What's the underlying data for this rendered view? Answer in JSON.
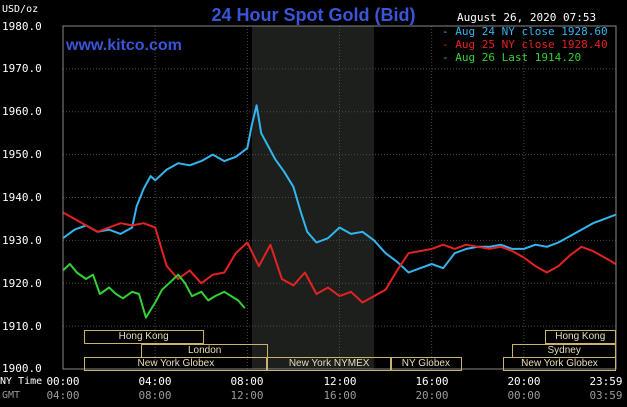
{
  "chart_data": {
    "type": "line",
    "title": "24 Hour Spot Gold (Bid)",
    "watermark": "www.kitco.com",
    "unit_label": "USD/oz",
    "datestamp": "August 26, 2020 07:53",
    "ylim": [
      1900,
      1980
    ],
    "y_ticks": [
      "1980.0",
      "1970.0",
      "1960.0",
      "1950.0",
      "1940.0",
      "1930.0",
      "1920.0",
      "1910.0",
      "1900.0"
    ],
    "xlim": [
      0,
      24
    ],
    "x_ticks_ny": [
      "00:00",
      "04:00",
      "08:00",
      "12:00",
      "16:00",
      "20:00",
      "23:59"
    ],
    "x_ticks_gmt": [
      "04:00",
      "08:00",
      "12:00",
      "16:00",
      "20:00",
      "00:00",
      "03:59"
    ],
    "x_row_label_ny": "NY Time",
    "x_row_label_gmt": "GMT",
    "grid": true,
    "legend_position": "top-right",
    "shaded_hours": [
      8.2,
      13.5
    ],
    "series": [
      {
        "name": "Aug 24 NY close 1928.60",
        "color": "#33b5f0",
        "x": [
          0,
          0.5,
          1,
          1.5,
          2,
          2.5,
          3,
          3.2,
          3.5,
          3.8,
          4,
          4.5,
          5,
          5.5,
          6,
          6.5,
          7,
          7.5,
          8,
          8.2,
          8.4,
          8.6,
          8.9,
          9.2,
          9.6,
          10,
          10.3,
          10.6,
          11,
          11.5,
          12,
          12.5,
          13,
          13.5,
          14,
          14.5,
          15,
          15.5,
          16,
          16.5,
          17,
          17.5,
          18,
          18.5,
          19,
          19.5,
          20,
          20.5,
          21,
          21.5,
          22,
          22.5,
          23,
          23.5,
          23.99
        ],
        "y": [
          1930.5,
          1932.5,
          1933.5,
          1932,
          1932.5,
          1931.5,
          1933,
          1938,
          1942,
          1945,
          1944,
          1946.5,
          1948,
          1947.5,
          1948.5,
          1950,
          1948.5,
          1949.5,
          1951.5,
          1957,
          1961.5,
          1955,
          1952,
          1949,
          1946,
          1942.5,
          1937,
          1932,
          1929.5,
          1930.5,
          1933,
          1931.5,
          1932,
          1930,
          1927,
          1925,
          1922.5,
          1923.5,
          1924.5,
          1923.5,
          1927,
          1928,
          1928.5,
          1928.5,
          1929,
          1928,
          1928,
          1929,
          1928.5,
          1929.5,
          1931,
          1932.5,
          1934,
          1935,
          1936
        ]
      },
      {
        "name": "Aug 25 NY close 1928.40",
        "color": "#e52222",
        "x": [
          0,
          0.5,
          1,
          1.5,
          2,
          2.5,
          3,
          3.5,
          4,
          4.5,
          5,
          5.5,
          6,
          6.5,
          7,
          7.5,
          8,
          8.5,
          9,
          9.5,
          10,
          10.5,
          11,
          11.5,
          12,
          12.5,
          13,
          13.5,
          14,
          14.5,
          15,
          15.5,
          16,
          16.5,
          17,
          17.5,
          18,
          18.5,
          19,
          19.5,
          20,
          20.5,
          21,
          21.5,
          22,
          22.5,
          23,
          23.5,
          23.99
        ],
        "y": [
          1936.5,
          1935,
          1933.5,
          1932,
          1933,
          1934,
          1933.5,
          1934,
          1933,
          1924,
          1921,
          1923,
          1920,
          1922,
          1922.5,
          1927,
          1929.5,
          1924,
          1929,
          1921,
          1919.5,
          1922.5,
          1917.5,
          1919,
          1917,
          1918,
          1915.5,
          1917,
          1918.5,
          1923,
          1927,
          1927.5,
          1928,
          1929,
          1928,
          1929,
          1928.5,
          1928,
          1928.5,
          1927.5,
          1926,
          1924,
          1922.5,
          1924,
          1926.5,
          1928.5,
          1927.5,
          1926,
          1924.5
        ]
      },
      {
        "name": "Aug 26 Last 1914.20",
        "color": "#33d133",
        "x": [
          0,
          0.3,
          0.6,
          1,
          1.3,
          1.6,
          2,
          2.3,
          2.6,
          3,
          3.3,
          3.6,
          4,
          4.3,
          4.6,
          5,
          5.3,
          5.6,
          6,
          6.3,
          6.6,
          7,
          7.3,
          7.6,
          7.89
        ],
        "y": [
          1923,
          1924.5,
          1922.5,
          1921,
          1922,
          1917.5,
          1919,
          1917.5,
          1916.5,
          1918,
          1917.5,
          1912,
          1915.5,
          1918.5,
          1920,
          1922,
          1920,
          1917,
          1918,
          1916,
          1917,
          1918,
          1917,
          1916,
          1914.2
        ]
      }
    ],
    "sessions": [
      {
        "label": "Hong Kong",
        "start": 0.9,
        "end": 6.1,
        "row": 0
      },
      {
        "label": "London",
        "start": 3.4,
        "end": 8.9,
        "row": 1
      },
      {
        "label": "New York Globex",
        "start": 0.9,
        "end": 8.9,
        "row": 2
      },
      {
        "label": "New York NYMEX",
        "start": 8.8,
        "end": 14.3,
        "row": 2
      },
      {
        "label": "NY Globex",
        "start": 14.2,
        "end": 17.3,
        "row": 2
      },
      {
        "label": "Hong Kong",
        "start": 20.9,
        "end": 24.0,
        "row": 0
      },
      {
        "label": "Sydney",
        "start": 19.5,
        "end": 24.0,
        "row": 1
      },
      {
        "label": "New York Globex",
        "start": 19.1,
        "end": 24.0,
        "row": 2
      }
    ]
  }
}
